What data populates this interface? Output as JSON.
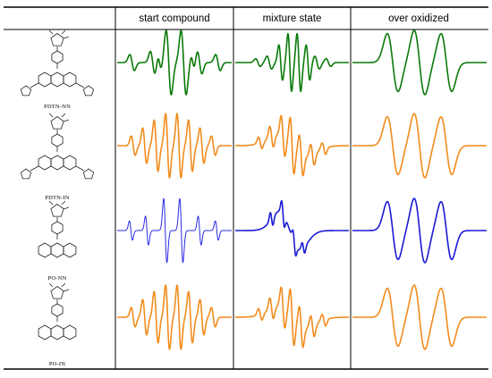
{
  "table": {
    "columns": [
      "start compound",
      "mixture state",
      "over oxidized"
    ],
    "rows": [
      {
        "compound": "PDTN-NN",
        "core": "phenothiazine",
        "thiophenes": true,
        "radical": "NN",
        "traces": [
          {
            "color": "#0a7a0a",
            "shape": "nn-start"
          },
          {
            "color": "#0a7a0a",
            "shape": "nn-mixture"
          },
          {
            "color": "#0a7a0a",
            "shape": "over-3line"
          }
        ]
      },
      {
        "compound": "PDTN-IN",
        "core": "phenothiazine",
        "thiophenes": true,
        "radical": "IN",
        "traces": [
          {
            "color": "#f28c1e",
            "shape": "in-start"
          },
          {
            "color": "#f28c1e",
            "shape": "in-mixture"
          },
          {
            "color": "#f28c1e",
            "shape": "over-3line"
          }
        ]
      },
      {
        "compound": "PO-NN",
        "core": "phenoxazine",
        "thiophenes": false,
        "radical": "NN",
        "traces": [
          {
            "color": "#2a2ae6",
            "shape": "nn-start-thin"
          },
          {
            "color": "#1a1ad4",
            "shape": "nn-mixture-blue"
          },
          {
            "color": "#1a1ad4",
            "shape": "over-3line"
          }
        ]
      },
      {
        "compound": "PO-IN",
        "core": "phenoxazine",
        "thiophenes": false,
        "radical": "IN",
        "traces": [
          {
            "color": "#f28c1e",
            "shape": "in-start"
          },
          {
            "color": "#f28c1e",
            "shape": "in-mixture"
          },
          {
            "color": "#f28c1e",
            "shape": "over-3line"
          }
        ]
      }
    ]
  }
}
